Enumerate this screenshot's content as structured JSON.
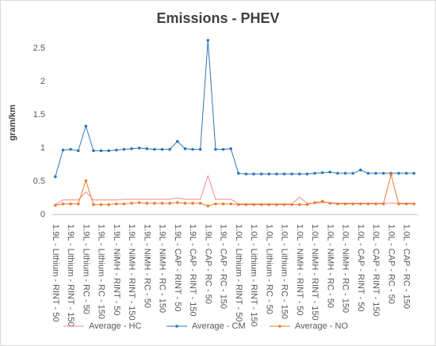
{
  "chart_data": {
    "type": "line",
    "title": "Emissions - PHEV",
    "y_label": "gram/km",
    "categories": [
      "1.9L - Lithium - RINT - 50",
      null,
      "1.9L - Lithium - RINT - 150",
      null,
      "1.9L - Lithium - RC - 50",
      null,
      "1.9L - Lithium - RC - 150",
      null,
      "1.9L - NiMH - RINT - 50",
      null,
      "1.9L - NiMH - RINT - 150",
      null,
      "1.9L - NiMH - RC - 50",
      null,
      "1.9L - NiMH - RC - 150",
      null,
      "1.9L - CAP - RINT - 50",
      null,
      "1.9L - CAP - RINT - 150",
      null,
      "1.9L - CAP - RC - 50",
      null,
      "1.9L - CAP - RC - 150",
      null,
      "1.0L - Lithium - RINT - 50",
      null,
      "1.0L - Lithium - RINT - 150",
      null,
      "1.0L - Lithium - RC - 50",
      null,
      "1.0L - Lithium - RC - 150",
      null,
      "1.0L - NiMH - RINT - 50",
      null,
      "1.0L - NiMH - RINT - 150",
      null,
      "1.0L - NiMH - RC - 50",
      null,
      "1.0L - NiMH - RC - 150",
      null,
      "1.0L - CAP - RINT - 50",
      null,
      "1.0L - CAP - RINT - 150",
      null,
      "1.0L - CAP - RC - 50",
      null,
      "1.0L - CAP - RC - 150",
      null
    ],
    "series": [
      {
        "name": "Average - HC",
        "color": "#f08c8c",
        "marker": false,
        "values": [
          0.15,
          0.22,
          0.22,
          0.22,
          0.34,
          0.22,
          0.22,
          0.22,
          0.22,
          0.23,
          0.23,
          0.23,
          0.23,
          0.23,
          0.23,
          0.23,
          0.25,
          0.23,
          0.23,
          0.23,
          0.58,
          0.23,
          0.23,
          0.23,
          0.16,
          0.16,
          0.16,
          0.16,
          0.16,
          0.16,
          0.16,
          0.16,
          0.26,
          0.17,
          0.17,
          0.18,
          0.18,
          0.17,
          0.17,
          0.17,
          0.17,
          0.17,
          0.17,
          0.17,
          0.17,
          0.17,
          0.17,
          0.17
        ]
      },
      {
        "name": "Average - CM",
        "color": "#2e75b6",
        "marker": true,
        "values": [
          0.57,
          0.97,
          0.98,
          0.96,
          1.33,
          0.96,
          0.96,
          0.96,
          0.97,
          0.98,
          0.99,
          1.0,
          0.99,
          0.98,
          0.98,
          0.98,
          1.1,
          0.99,
          0.98,
          0.98,
          2.62,
          0.98,
          0.98,
          0.99,
          0.62,
          0.61,
          0.61,
          0.61,
          0.61,
          0.61,
          0.61,
          0.61,
          0.61,
          0.61,
          0.62,
          0.63,
          0.64,
          0.62,
          0.62,
          0.62,
          0.67,
          0.62,
          0.62,
          0.62,
          0.62,
          0.62,
          0.62,
          0.62
        ]
      },
      {
        "name": "Average - NO",
        "color": "#ed7d31",
        "marker": true,
        "values": [
          0.14,
          0.16,
          0.16,
          0.16,
          0.51,
          0.15,
          0.15,
          0.15,
          0.16,
          0.16,
          0.17,
          0.18,
          0.17,
          0.17,
          0.17,
          0.17,
          0.18,
          0.17,
          0.17,
          0.17,
          0.13,
          0.16,
          0.16,
          0.16,
          0.15,
          0.15,
          0.15,
          0.15,
          0.15,
          0.15,
          0.15,
          0.15,
          0.15,
          0.15,
          0.18,
          0.2,
          0.17,
          0.16,
          0.16,
          0.16,
          0.16,
          0.16,
          0.16,
          0.16,
          0.6,
          0.16,
          0.16,
          0.16
        ]
      }
    ],
    "ylim": [
      0,
      2.75
    ],
    "yticks": [
      0,
      0.5,
      1,
      1.5,
      2,
      2.5
    ],
    "grid": false,
    "legend": "bottom"
  }
}
